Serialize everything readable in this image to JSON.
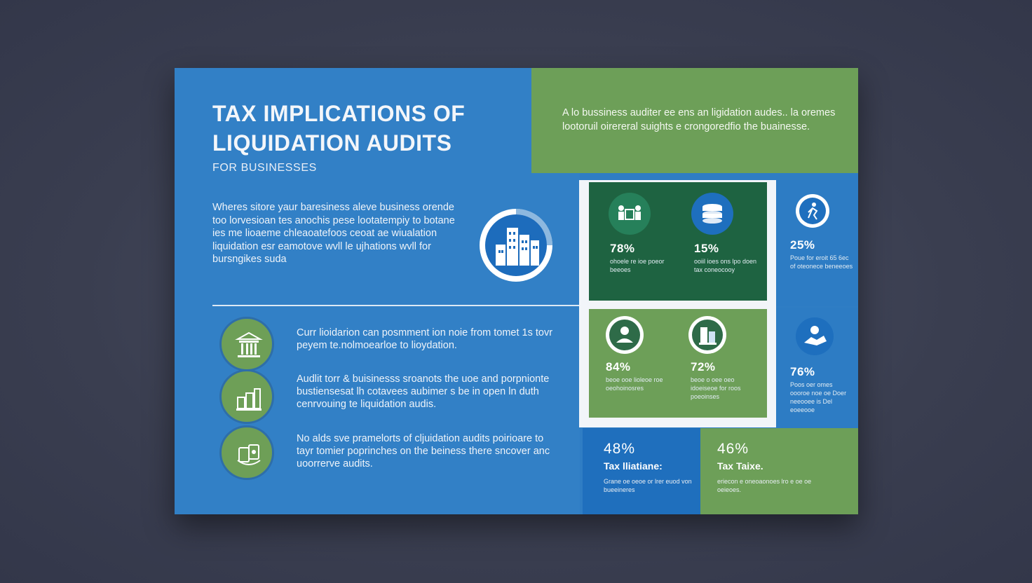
{
  "header": {
    "title": "TAX IMPLICATIONS OF LIQUIDATION AUDITS",
    "subtitle": "FOR BUSINESSES"
  },
  "intro_text": "Wheres sitore yaur baresiness aleve business orende too lorvesioan tes anochis pese lootatempiy to botane ies me lioaeme chleaoatefoos ceoat ae wiualation liquidation esr eamotove wvll le ujhations wvll for bursngikes suda",
  "callout_text": "A lo bussiness auditer ee ens an ligidation audes.. la oremes lootoruil oirereral suights e crongoredfio the buainesse.",
  "features": [
    {
      "icon": "bank-icon",
      "text": "Curr lioidarion can posmment ion noie from tomet 1s tovr peyem te.nolmoearloe to lioydation."
    },
    {
      "icon": "money-stack-icon",
      "text": "Audlit torr & buisinesss sroanots the uoe and porpnionte bustiensesat lh cotavees aubimer s be in open ln duth cenrvouing te liquidation audis."
    },
    {
      "icon": "documents-icon",
      "text": "No alds sve pramelorts of cljuidation audits poirioare to tayr tomier poprinches on the beiness there sncover anc uoorrerve audits."
    }
  ],
  "stats": [
    {
      "pct": "78%",
      "caption": "ohoele re ioe poeor beeoes",
      "icon": "team-icon"
    },
    {
      "pct": "15%",
      "caption": "ooiil ioes ons lpo doen tax coneocooy",
      "icon": "coins-icon"
    },
    {
      "pct": "25%",
      "caption": "Poue for eroit 65 6ec of oteonece beneeoes",
      "icon": "runner-icon"
    },
    {
      "pct": "84%",
      "caption": "beoe ooe lioleoe roe oeohoinosres",
      "icon": "person-icon"
    },
    {
      "pct": "72%",
      "caption": "beoe o oee oeo idoeiseoe for roos poeoinses",
      "icon": "building-icon"
    },
    {
      "pct": "76%",
      "caption": "Poos oer omes oooroe noe oe Doer neeooee is Del eoeeooe",
      "icon": "handshake-icon"
    }
  ],
  "bottom": [
    {
      "pct": "48%",
      "label": "Tax lliatiane:",
      "caption": "Grane oe oeoe or lrer euod von bueeineres"
    },
    {
      "pct": "46%",
      "label": "Tax Taixe.",
      "caption": "eriecon e oneoaonoes lro e oe oe oeieoes."
    }
  ],
  "colors": {
    "blue": "#3280c6",
    "dark_green": "#1e6341",
    "green": "#6d9f58",
    "deep_blue": "#1f6fbd"
  }
}
